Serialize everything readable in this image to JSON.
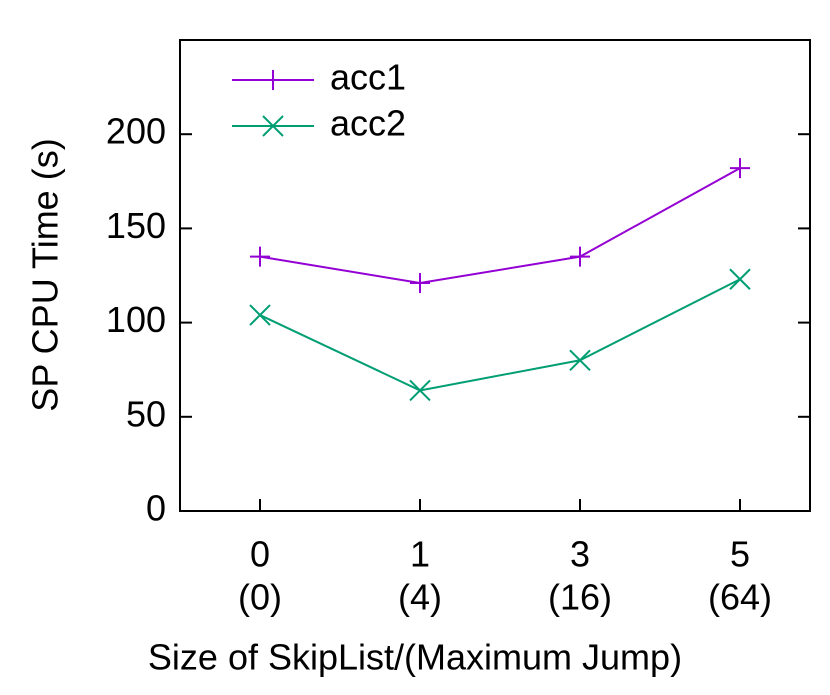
{
  "chart_data": {
    "type": "line",
    "categories": [
      "0",
      "1",
      "3",
      "5"
    ],
    "category_sublabels": [
      "(0)",
      "(4)",
      "(16)",
      "(64)"
    ],
    "xlabel": "Size of SkipList/(Maximum Jump)",
    "ylabel": "SP CPU Time (s)",
    "ylim": [
      0,
      250
    ],
    "yticks": [
      0,
      50,
      100,
      150,
      200
    ],
    "legend": "top-left",
    "series": [
      {
        "name": "acc1",
        "color": "#9400d3",
        "marker": "plus",
        "values": [
          135,
          121,
          135,
          182
        ]
      },
      {
        "name": "acc2",
        "color": "#009e73",
        "marker": "cross",
        "values": [
          104,
          64,
          80,
          123
        ]
      }
    ]
  }
}
